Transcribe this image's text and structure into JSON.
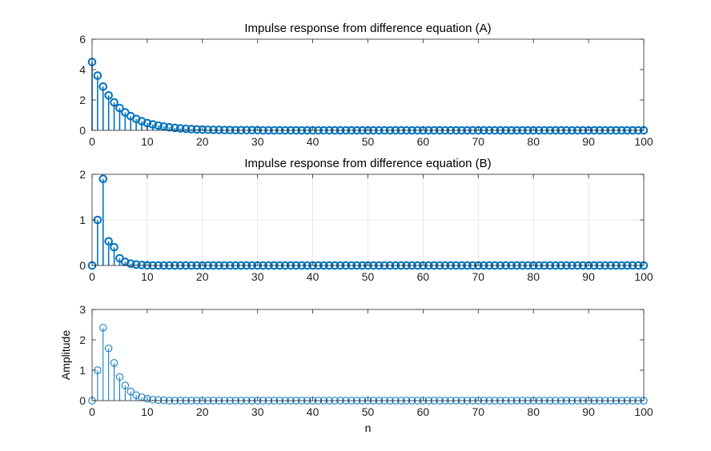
{
  "chart_data": [
    {
      "type": "stem",
      "title": "Impulse response from difference equation (A)",
      "xlabel": "",
      "ylabel": "",
      "xlim": [
        0,
        100
      ],
      "ylim": [
        0,
        6
      ],
      "xticks": [
        0,
        10,
        20,
        30,
        40,
        50,
        60,
        70,
        80,
        90,
        100
      ],
      "yticks": [
        0,
        2,
        4,
        6
      ],
      "grid": false,
      "color": "#0072BD",
      "marker": "circle-bold",
      "x_range": [
        0,
        100
      ],
      "values": [
        4.5,
        3.6,
        2.88,
        2.3,
        1.84,
        1.47,
        1.18,
        0.94,
        0.75,
        0.6,
        0.48,
        0.39,
        0.31,
        0.25,
        0.2,
        0.16,
        0.13,
        0.1,
        0.08,
        0.06,
        0.05,
        0.04,
        0.03,
        0.03,
        0.02,
        0.02,
        0.01,
        0.01,
        0.01,
        0.01,
        0.01
      ],
      "values_note_zero_after_index": 30
    },
    {
      "type": "stem",
      "title": "Impulse response from difference equation (B)",
      "xlabel": "",
      "ylabel": "",
      "xlim": [
        0,
        100
      ],
      "ylim": [
        0,
        2
      ],
      "xticks": [
        0,
        10,
        20,
        30,
        40,
        50,
        60,
        70,
        80,
        90,
        100
      ],
      "yticks": [
        0,
        1,
        2
      ],
      "grid": true,
      "color": "#0072BD",
      "marker": "circle-bold",
      "x_range": [
        0,
        100
      ],
      "values": [
        0,
        1,
        1.9,
        0.53,
        0.4,
        0.16,
        0.08,
        0.04,
        0.02,
        0.01,
        0.005
      ]
    },
    {
      "type": "stem",
      "title": "",
      "xlabel": "n",
      "ylabel": "Amplitude",
      "xlim": [
        0,
        100
      ],
      "ylim": [
        0,
        3
      ],
      "xticks": [
        0,
        10,
        20,
        30,
        40,
        50,
        60,
        70,
        80,
        90,
        100
      ],
      "yticks": [
        0,
        1,
        2,
        3
      ],
      "grid": false,
      "color": "#0072BD",
      "marker": "circle-thin",
      "x_range": [
        0,
        100
      ],
      "values": [
        0,
        1,
        2.4,
        1.72,
        1.24,
        0.78,
        0.5,
        0.3,
        0.18,
        0.11,
        0.06,
        0.03,
        0.02,
        0.01
      ]
    }
  ]
}
